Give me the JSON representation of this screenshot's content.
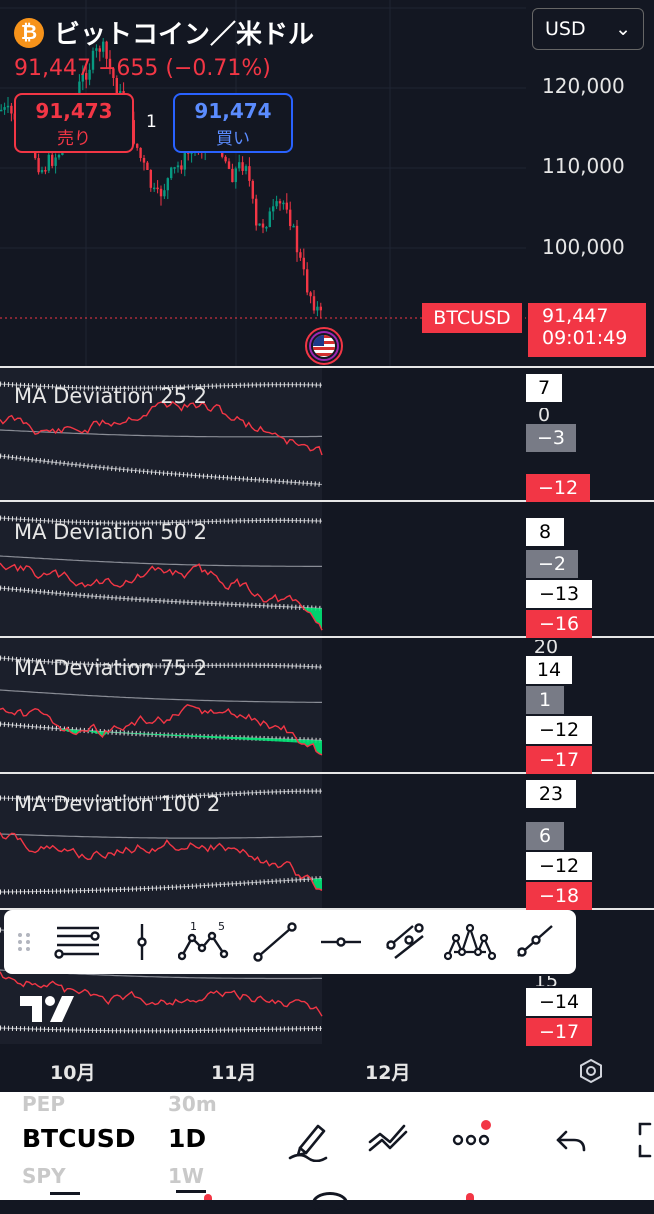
{
  "header": {
    "coin_glyph": "₿",
    "title": "ビットコイン／米ドル",
    "quote": "91,447 −655 (−0.71%)",
    "sell_price": "91,473",
    "sell_label": "売り",
    "buy_price": "91,474",
    "buy_label": "買い",
    "quantity": "1",
    "currency": "USD",
    "currency_caret": "⌄"
  },
  "price_axis": {
    "labels": [
      "120,000",
      "110,000",
      "100,000"
    ],
    "ticker_tag": "BTCUSD",
    "last_price": "91,447",
    "countdown": "09:01:49"
  },
  "panes": [
    {
      "title": "MA Deviation 25  2",
      "values": [
        {
          "text": "7",
          "style": "white"
        },
        {
          "text": "0",
          "style": "hidden"
        },
        {
          "text": "−3",
          "style": "gray"
        },
        {
          "text": "−12",
          "style": "red"
        }
      ]
    },
    {
      "title": "MA Deviation 50  2",
      "values": [
        {
          "text": "8",
          "style": "white"
        },
        {
          "text": "−2",
          "style": "gray"
        },
        {
          "text": "−13",
          "style": "white"
        },
        {
          "text": "−16",
          "style": "red"
        }
      ]
    },
    {
      "title": "MA Deviation 75  2",
      "values": [
        {
          "text": "20",
          "style": "hidden"
        },
        {
          "text": "14",
          "style": "white"
        },
        {
          "text": "1",
          "style": "gray"
        },
        {
          "text": "−12",
          "style": "white"
        },
        {
          "text": "−17",
          "style": "red"
        }
      ]
    },
    {
      "title": "MA Deviation 100  2",
      "values": [
        {
          "text": "23",
          "style": "white"
        },
        {
          "text": "6",
          "style": "gray"
        },
        {
          "text": "−12",
          "style": "white"
        },
        {
          "text": "−18",
          "style": "red"
        }
      ]
    },
    {
      "title": "",
      "values": [
        {
          "text": "15",
          "style": "hidden"
        },
        {
          "text": "−14",
          "style": "white"
        },
        {
          "text": "−17",
          "style": "red"
        }
      ]
    }
  ],
  "drawing_toolbar": {
    "tools": [
      "drag-handle",
      "horizontal-lines",
      "vertical-line",
      "elliott-wave-1-5",
      "trend-line",
      "horizontal-ray",
      "parallel-channel",
      "head-shoulders",
      "ray"
    ],
    "wave_labels": [
      "1",
      "5"
    ]
  },
  "time_axis": {
    "months": [
      "10月",
      "11月",
      "12月"
    ]
  },
  "bottom_bar": {
    "symbol": "BTCUSD",
    "interval": "1D",
    "faded_above": [
      "PEP",
      "30m"
    ],
    "faded_below": [
      "SPY",
      "1W"
    ],
    "notification_color": "#f23645"
  },
  "colors": {
    "bg": "#131722",
    "down": "#f23645",
    "up": "#089981",
    "buy": "#2962ff"
  }
}
